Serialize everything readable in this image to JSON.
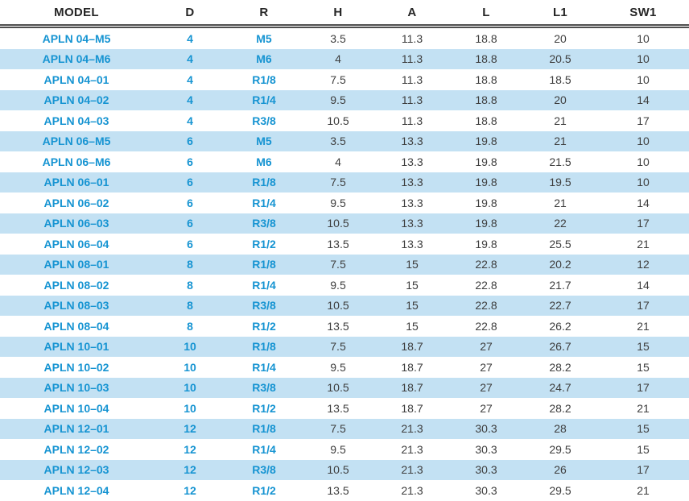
{
  "table": {
    "columns": [
      "MODEL",
      "D",
      "R",
      "H",
      "A",
      "L",
      "L1",
      "SW1"
    ],
    "rows": [
      [
        "APLN 04–M5",
        "4",
        "M5",
        "3.5",
        "11.3",
        "18.8",
        "20",
        "10"
      ],
      [
        "APLN 04–M6",
        "4",
        "M6",
        "4",
        "11.3",
        "18.8",
        "20.5",
        "10"
      ],
      [
        "APLN 04–01",
        "4",
        "R1/8",
        "7.5",
        "11.3",
        "18.8",
        "18.5",
        "10"
      ],
      [
        "APLN 04–02",
        "4",
        "R1/4",
        "9.5",
        "11.3",
        "18.8",
        "20",
        "14"
      ],
      [
        "APLN 04–03",
        "4",
        "R3/8",
        "10.5",
        "11.3",
        "18.8",
        "21",
        "17"
      ],
      [
        "APLN 06–M5",
        "6",
        "M5",
        "3.5",
        "13.3",
        "19.8",
        "21",
        "10"
      ],
      [
        "APLN 06–M6",
        "6",
        "M6",
        "4",
        "13.3",
        "19.8",
        "21.5",
        "10"
      ],
      [
        "APLN 06–01",
        "6",
        "R1/8",
        "7.5",
        "13.3",
        "19.8",
        "19.5",
        "10"
      ],
      [
        "APLN 06–02",
        "6",
        "R1/4",
        "9.5",
        "13.3",
        "19.8",
        "21",
        "14"
      ],
      [
        "APLN 06–03",
        "6",
        "R3/8",
        "10.5",
        "13.3",
        "19.8",
        "22",
        "17"
      ],
      [
        "APLN 06–04",
        "6",
        "R1/2",
        "13.5",
        "13.3",
        "19.8",
        "25.5",
        "21"
      ],
      [
        "APLN 08–01",
        "8",
        "R1/8",
        "7.5",
        "15",
        "22.8",
        "20.2",
        "12"
      ],
      [
        "APLN 08–02",
        "8",
        "R1/4",
        "9.5",
        "15",
        "22.8",
        "21.7",
        "14"
      ],
      [
        "APLN 08–03",
        "8",
        "R3/8",
        "10.5",
        "15",
        "22.8",
        "22.7",
        "17"
      ],
      [
        "APLN 08–04",
        "8",
        "R1/2",
        "13.5",
        "15",
        "22.8",
        "26.2",
        "21"
      ],
      [
        "APLN 10–01",
        "10",
        "R1/8",
        "7.5",
        "18.7",
        "27",
        "26.7",
        "15"
      ],
      [
        "APLN 10–02",
        "10",
        "R1/4",
        "9.5",
        "18.7",
        "27",
        "28.2",
        "15"
      ],
      [
        "APLN 10–03",
        "10",
        "R3/8",
        "10.5",
        "18.7",
        "27",
        "24.7",
        "17"
      ],
      [
        "APLN 10–04",
        "10",
        "R1/2",
        "13.5",
        "18.7",
        "27",
        "28.2",
        "21"
      ],
      [
        "APLN 12–01",
        "12",
        "R1/8",
        "7.5",
        "21.3",
        "30.3",
        "28",
        "15"
      ],
      [
        "APLN 12–02",
        "12",
        "R1/4",
        "9.5",
        "21.3",
        "30.3",
        "29.5",
        "15"
      ],
      [
        "APLN 12–03",
        "12",
        "R3/8",
        "10.5",
        "21.3",
        "30.3",
        "26",
        "17"
      ],
      [
        "APLN 12–04",
        "12",
        "R1/2",
        "13.5",
        "21.3",
        "30.3",
        "29.5",
        "21"
      ]
    ]
  },
  "colors": {
    "accent_text": "#1694d2",
    "row_alt_bg": "#c3e1f3",
    "number_text": "#3e3e3e",
    "header_text": "#262626",
    "header_rule": "#4f4f4f"
  }
}
